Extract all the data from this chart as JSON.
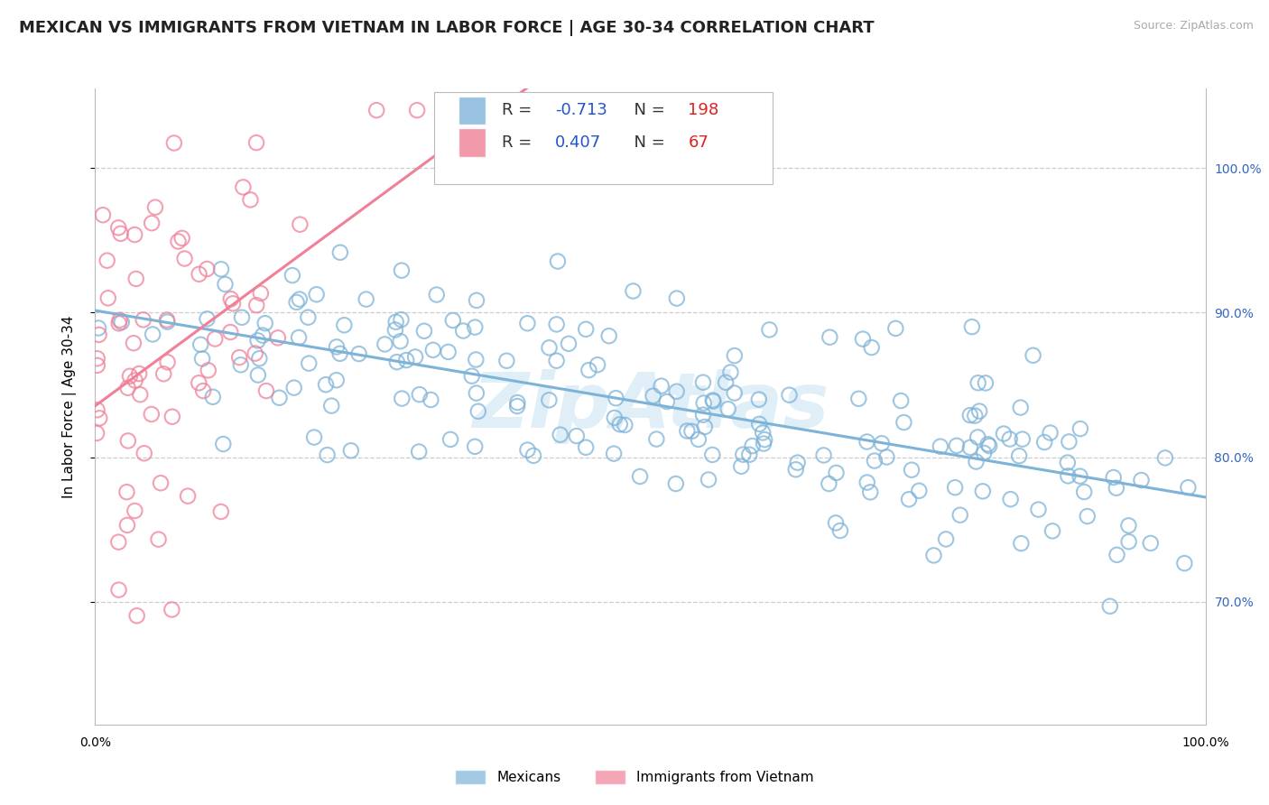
{
  "title": "MEXICAN VS IMMIGRANTS FROM VIETNAM IN LABOR FORCE | AGE 30-34 CORRELATION CHART",
  "source": "Source: ZipAtlas.com",
  "ylabel": "In Labor Force | Age 30-34",
  "xlim": [
    0.0,
    1.0
  ],
  "ylim": [
    0.615,
    1.055
  ],
  "right_yticks": [
    0.7,
    0.8,
    0.9,
    1.0
  ],
  "right_yticklabels": [
    "70.0%",
    "80.0%",
    "90.0%",
    "100.0%"
  ],
  "blue_color": "#7EB3D8",
  "pink_color": "#F08098",
  "blue_label": "Mexicans",
  "pink_label": "Immigrants from Vietnam",
  "R_blue": -0.713,
  "N_blue": 198,
  "R_pink": 0.407,
  "N_pink": 67,
  "legend_R_color": "#2255CC",
  "legend_N_color": "#DD2222",
  "watermark_color": "#BBDDEE",
  "grid_color": "#CCCCCC",
  "background_color": "#FFFFFF",
  "title_fontsize": 13,
  "axis_label_fontsize": 11,
  "tick_fontsize": 10,
  "legend_fontsize": 13
}
